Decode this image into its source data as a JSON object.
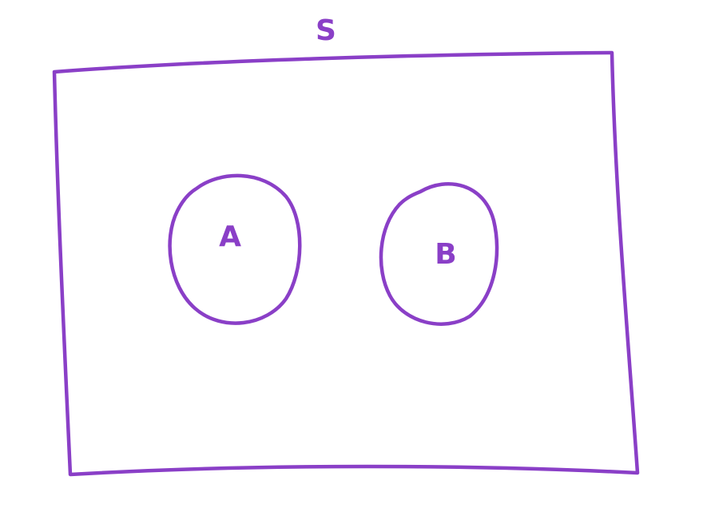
{
  "diagram": {
    "ink_color": "#8a3fc7",
    "background_color": "#ffffff",
    "universal_set": {
      "label": "S"
    },
    "sets": [
      {
        "id": "set-a",
        "label": "A"
      },
      {
        "id": "set-b",
        "label": "B"
      }
    ]
  }
}
